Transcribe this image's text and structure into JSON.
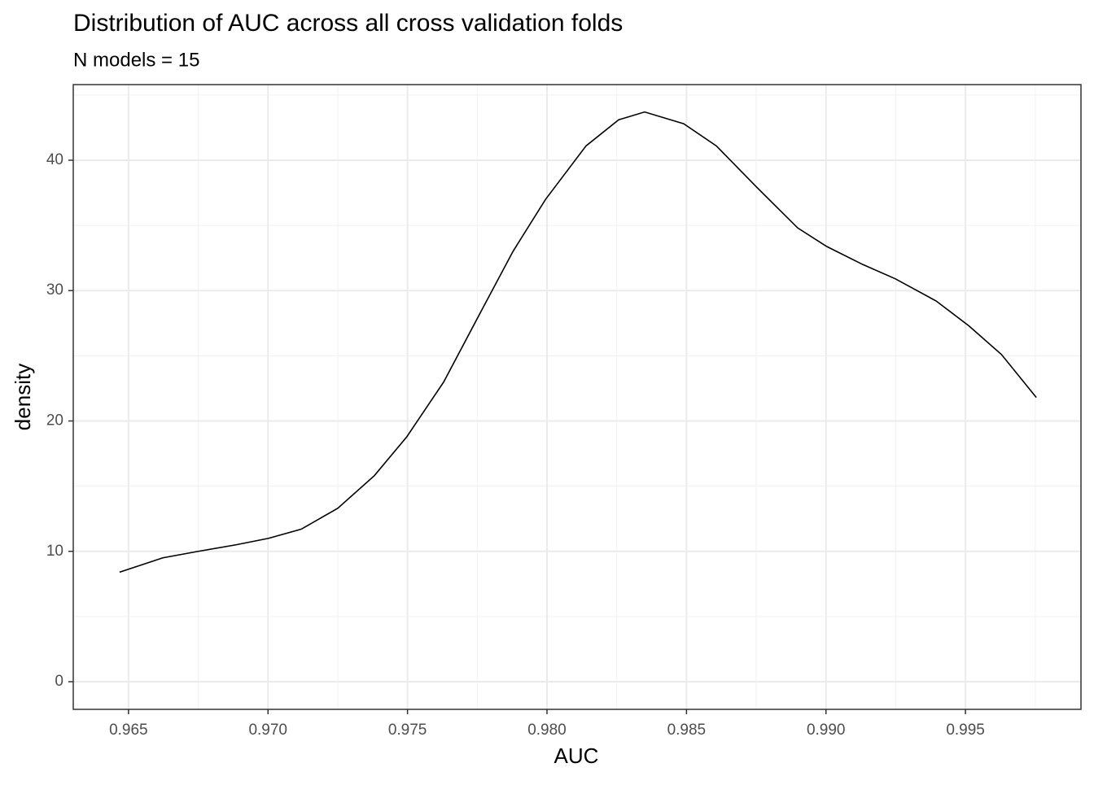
{
  "chart_data": {
    "type": "line",
    "title": "Distribution of AUC across all cross validation folds",
    "subtitle": "N models =  15",
    "x_label": "AUC",
    "y_label": "density",
    "x": [
      0.96468,
      0.96623,
      0.9675,
      0.96885,
      0.97002,
      0.97119,
      0.9725,
      0.97381,
      0.97498,
      0.9763,
      0.97761,
      0.97878,
      0.97995,
      0.9814,
      0.98257,
      0.9835,
      0.9849,
      0.98607,
      0.98753,
      0.98899,
      0.99001,
      0.99132,
      0.99249,
      0.99395,
      0.99512,
      0.99629,
      0.99754
    ],
    "series": [
      {
        "name": "density",
        "color": "#000000",
        "values": [
          8.4,
          9.5,
          10.0,
          10.5,
          11.0,
          11.7,
          13.3,
          15.8,
          18.8,
          23.0,
          28.3,
          33.0,
          37.0,
          41.1,
          43.1,
          43.7,
          42.8,
          41.1,
          37.9,
          34.8,
          33.4,
          32.0,
          30.9,
          29.2,
          27.3,
          25.1,
          21.8
        ]
      }
    ],
    "xlim": [
      0.96302,
      0.99914
    ],
    "ylim": [
      -2.12,
      45.8
    ],
    "xticks": [
      {
        "value": 0.965,
        "label": "0.965"
      },
      {
        "value": 0.97,
        "label": "0.970"
      },
      {
        "value": 0.975,
        "label": "0.975"
      },
      {
        "value": 0.98,
        "label": "0.980"
      },
      {
        "value": 0.985,
        "label": "0.985"
      },
      {
        "value": 0.99,
        "label": "0.990"
      },
      {
        "value": 0.995,
        "label": "0.995"
      }
    ],
    "yticks": [
      0,
      10,
      20,
      30,
      40
    ],
    "grid": true,
    "minor_grid": true
  }
}
